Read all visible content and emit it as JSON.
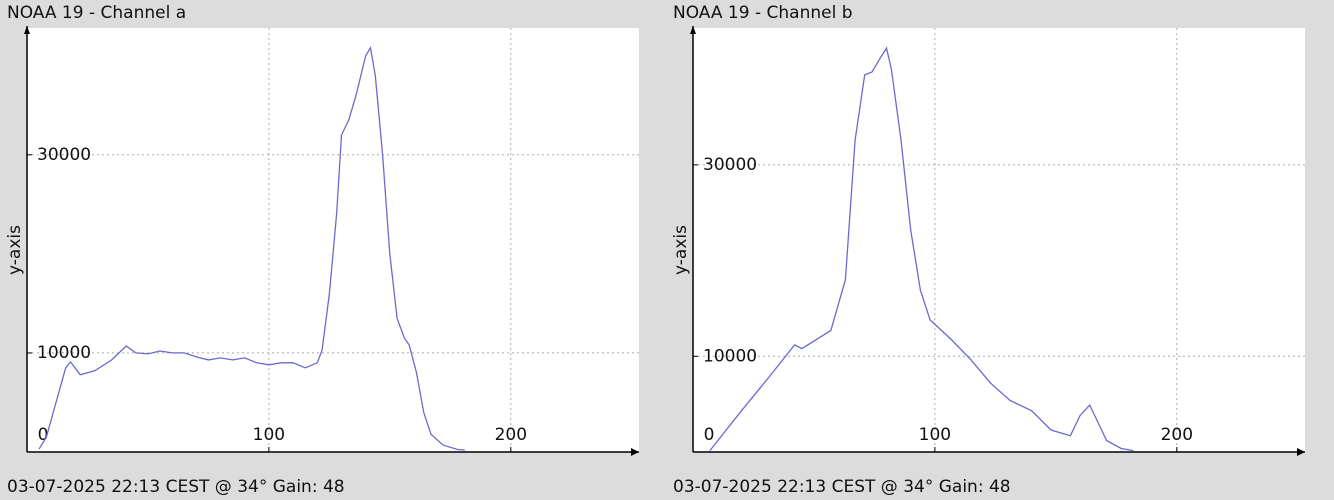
{
  "chart_data": [
    {
      "type": "line",
      "title": "NOAA 19 - Channel a",
      "y_label": "y-axis",
      "footer": "03-07-2025 22:13 CEST @ 34° Gain: 48",
      "xlim": [
        0,
        253
      ],
      "ylim": [
        0,
        42800
      ],
      "xticks": [
        0,
        100,
        200
      ],
      "yticks": [
        10000,
        30000
      ],
      "grid": true,
      "series": [
        {
          "color": "#6a6ad0",
          "x": [
            5,
            8,
            12,
            16,
            18,
            22,
            28,
            35,
            41,
            45,
            50,
            55,
            60,
            65,
            70,
            75,
            80,
            85,
            90,
            95,
            100,
            105,
            110,
            115,
            120,
            122,
            125,
            128,
            130,
            133,
            136,
            140,
            142,
            144,
            147,
            150,
            153,
            156,
            158,
            161,
            164,
            167,
            172,
            178,
            181
          ],
          "values": [
            300,
            1500,
            5000,
            8500,
            9100,
            7800,
            8200,
            9300,
            10700,
            10000,
            9900,
            10200,
            10000,
            10000,
            9600,
            9300,
            9500,
            9300,
            9500,
            9000,
            8800,
            9000,
            9000,
            8500,
            9000,
            10300,
            16000,
            24000,
            32000,
            33500,
            36000,
            40000,
            40800,
            38000,
            30000,
            20000,
            13500,
            11500,
            10800,
            8000,
            4000,
            1800,
            700,
            250,
            200
          ]
        }
      ]
    },
    {
      "type": "line",
      "title": "NOAA 19 - Channel b",
      "y_label": "y-axis",
      "footer": "03-07-2025 22:13 CEST @ 34° Gain: 48",
      "xlim": [
        0,
        253
      ],
      "ylim": [
        0,
        44300
      ],
      "xticks": [
        0,
        100,
        200
      ],
      "yticks": [
        10000,
        30000
      ],
      "grid": true,
      "series": [
        {
          "color": "#6a6ad0",
          "x": [
            7,
            20,
            32,
            42,
            45,
            57,
            63,
            67,
            71,
            74,
            77,
            80,
            82,
            86,
            90,
            94,
            98,
            107,
            115,
            123,
            131,
            140,
            148,
            156,
            160,
            164,
            167,
            171,
            177,
            182
          ],
          "values": [
            150,
            4300,
            8000,
            11200,
            10800,
            12700,
            18000,
            32600,
            39400,
            39700,
            41000,
            42200,
            40000,
            32600,
            23200,
            16900,
            13800,
            11700,
            9600,
            7200,
            5400,
            4300,
            2300,
            1700,
            3800,
            4900,
            3300,
            1200,
            370,
            150
          ]
        }
      ]
    }
  ]
}
